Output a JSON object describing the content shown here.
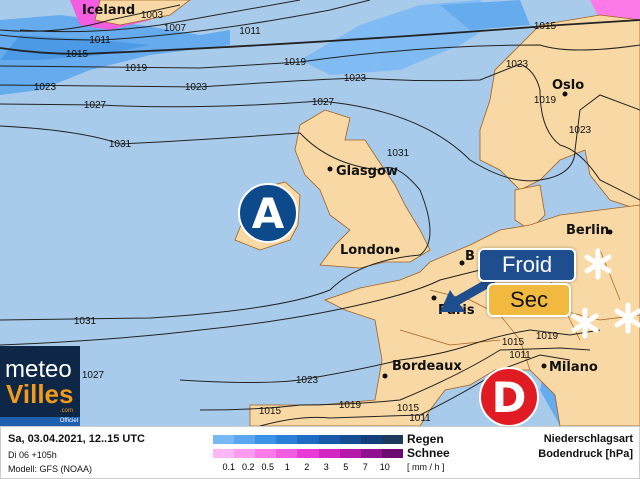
{
  "colors": {
    "ocean": "#a9cbeb",
    "land": "#f8d9a5",
    "high": "#0d4a8c",
    "low": "#e01b24",
    "froid": "#1f4e8f",
    "sec": "#f2b940"
  },
  "cities": {
    "iceland": "Iceland",
    "glasgow": "Glasgow",
    "london": "London",
    "bruxelles": "B",
    "paris": "Paris",
    "bordeaux": "Bordeaux",
    "milano": "Milano",
    "berlin": "Berlin",
    "oslo": "Oslo"
  },
  "isobar_labels": [
    "1003",
    "1007",
    "1011",
    "1011",
    "1015",
    "1015",
    "1019",
    "1019",
    "1023",
    "1023",
    "1023",
    "1023",
    "1019",
    "1023",
    "1027",
    "1027",
    "1031",
    "1031",
    "1031",
    "1023",
    "1019",
    "1015",
    "1015",
    "1015",
    "1019",
    "1011",
    "1011",
    "1027"
  ],
  "markers": {
    "high": "A",
    "low": "D",
    "snow_icon": "snowflake-icon",
    "arrow_icon": "arrow-down-left-icon"
  },
  "badges": {
    "cold": "Froid",
    "dry": "Sec"
  },
  "logo": {
    "line1": "meteo",
    "line2": "Villes",
    ".com": ".com",
    "tag": "Officiel"
  },
  "legend": {
    "date": "Sa, 03.04.2021, 12..15 UTC",
    "run": "Di 06 +105h",
    "model": "Modell: GFS (NOAA)",
    "rain": "Regen",
    "snow": "Schnee",
    "unit": "[ mm / h ]",
    "ticks": [
      "0.1",
      "0.2",
      "0.5",
      "1",
      "2",
      "3",
      "5",
      "7",
      "10"
    ],
    "rain_colors": [
      "#7ab8f5",
      "#5aa6ef",
      "#3c92e6",
      "#2a7fd8",
      "#1f6cc4",
      "#1a5aa8",
      "#154c92",
      "#133f7c",
      "#1c3a5c"
    ],
    "snow_colors": [
      "#ffb8f5",
      "#ff9cf0",
      "#fb7ae8",
      "#f35ee0",
      "#e93ad6",
      "#d326c4",
      "#b518aa",
      "#911190",
      "#6e0b70"
    ],
    "type": "Niederschlagsart",
    "pressure": "Bodendruck [hPa]"
  }
}
